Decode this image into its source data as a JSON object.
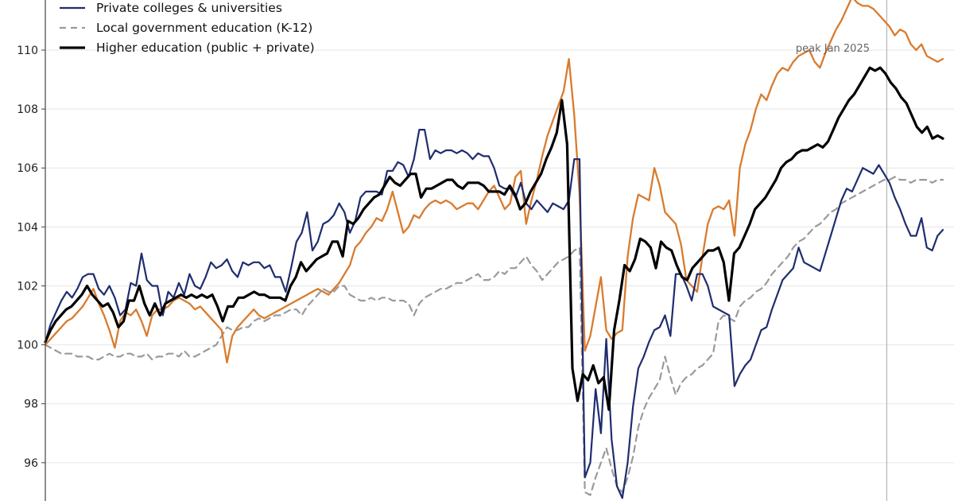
{
  "chart_data": {
    "type": "line",
    "x_start": "2015-01",
    "x_end": "2025-09",
    "ylim": [
      94.7,
      111.7
    ],
    "y_ticks": [
      96,
      98,
      100,
      102,
      104,
      106,
      108,
      110
    ],
    "grid": "horizontal",
    "legend_placement": "top-left",
    "annotation": {
      "text": "peak Jan 2025",
      "x": "2025-01"
    },
    "series": [
      {
        "name": "Private colleges & universities",
        "color": "#1f2d6e",
        "style": "solid",
        "values": [
          100.1,
          100.7,
          101.1,
          101.5,
          101.8,
          101.6,
          101.9,
          102.3,
          102.4,
          102.4,
          101.9,
          101.7,
          102.0,
          101.6,
          101.0,
          101.2,
          102.1,
          102.0,
          103.1,
          102.2,
          102.0,
          102.0,
          101.0,
          101.8,
          101.6,
          102.1,
          101.7,
          102.4,
          102.0,
          101.9,
          102.3,
          102.8,
          102.6,
          102.7,
          102.9,
          102.5,
          102.3,
          102.8,
          102.7,
          102.8,
          102.8,
          102.6,
          102.7,
          102.3,
          102.3,
          101.8,
          102.6,
          103.5,
          103.8,
          104.5,
          103.2,
          103.5,
          104.1,
          104.2,
          104.4,
          104.8,
          104.5,
          103.8,
          104.2,
          105.0,
          105.2,
          105.2,
          105.2,
          105.1,
          105.9,
          105.9,
          106.2,
          106.1,
          105.7,
          106.3,
          107.3,
          107.3,
          106.3,
          106.6,
          106.5,
          106.6,
          106.6,
          106.5,
          106.6,
          106.5,
          106.3,
          106.5,
          106.4,
          106.4,
          106.0,
          105.4,
          105.3,
          105.3,
          105.0,
          105.5,
          104.8,
          104.6,
          104.9,
          104.7,
          104.5,
          104.8,
          104.7,
          104.6,
          104.9,
          106.3,
          106.3,
          95.5,
          96.0,
          98.5,
          97.0,
          100.2,
          96.8,
          95.2,
          94.8,
          96.0,
          97.9,
          99.2,
          99.6,
          100.1,
          100.5,
          100.6,
          101.0,
          100.3,
          102.4,
          102.4,
          102.0,
          101.5,
          102.4,
          102.4,
          102.0,
          101.3,
          101.2,
          101.1,
          101.0,
          98.6,
          99.0,
          99.3,
          99.5,
          100.0,
          100.5,
          100.6,
          101.2,
          101.7,
          102.2,
          102.4,
          102.6,
          103.3,
          102.8,
          102.7,
          102.6,
          102.5,
          103.1,
          103.7,
          104.3,
          104.9,
          105.3,
          105.2,
          105.6,
          106.0,
          105.9,
          105.8,
          106.1,
          105.8,
          105.5,
          105.0,
          104.6,
          104.1,
          103.7,
          103.7,
          104.3,
          103.3,
          103.2,
          103.7,
          103.9
        ]
      },
      {
        "name": "Local government education (K-12)",
        "color": "#9a9a9a",
        "style": "dashed",
        "values": [
          100.0,
          99.9,
          99.8,
          99.7,
          99.7,
          99.7,
          99.6,
          99.6,
          99.6,
          99.5,
          99.5,
          99.6,
          99.7,
          99.6,
          99.6,
          99.7,
          99.7,
          99.6,
          99.6,
          99.7,
          99.5,
          99.6,
          99.6,
          99.7,
          99.7,
          99.6,
          99.8,
          99.6,
          99.6,
          99.7,
          99.8,
          99.9,
          100.0,
          100.3,
          100.6,
          100.5,
          100.5,
          100.6,
          100.6,
          100.8,
          100.9,
          100.8,
          100.9,
          101.0,
          101.0,
          101.1,
          101.2,
          101.2,
          101.0,
          101.3,
          101.5,
          101.7,
          101.9,
          101.8,
          101.8,
          102.0,
          102.0,
          101.7,
          101.6,
          101.5,
          101.5,
          101.6,
          101.5,
          101.6,
          101.6,
          101.5,
          101.5,
          101.5,
          101.4,
          101.0,
          101.4,
          101.6,
          101.7,
          101.8,
          101.9,
          101.9,
          102.0,
          102.1,
          102.1,
          102.2,
          102.3,
          102.4,
          102.2,
          102.2,
          102.3,
          102.5,
          102.4,
          102.6,
          102.6,
          102.8,
          103.0,
          102.7,
          102.5,
          102.2,
          102.4,
          102.6,
          102.8,
          102.9,
          103.0,
          103.2,
          103.3,
          95.0,
          94.9,
          95.5,
          96.0,
          96.5,
          95.8,
          95.2,
          95.0,
          95.5,
          96.2,
          97.2,
          97.8,
          98.2,
          98.5,
          98.8,
          99.6,
          98.9,
          98.3,
          98.7,
          98.9,
          99.0,
          99.2,
          99.3,
          99.5,
          99.7,
          100.8,
          101.0,
          100.9,
          100.8,
          101.3,
          101.5,
          101.6,
          101.8,
          101.9,
          102.1,
          102.4,
          102.6,
          102.8,
          103.0,
          103.3,
          103.5,
          103.6,
          103.8,
          104.0,
          104.1,
          104.3,
          104.5,
          104.6,
          104.8,
          104.9,
          105.0,
          105.1,
          105.2,
          105.3,
          105.4,
          105.5,
          105.6,
          105.6,
          105.7,
          105.6,
          105.6,
          105.5,
          105.6,
          105.6,
          105.6,
          105.5,
          105.6,
          105.6
        ]
      },
      {
        "name": "Higher education (public + private)",
        "color": "#000000",
        "style": "solid",
        "values": [
          100.1,
          100.5,
          100.8,
          101.0,
          101.2,
          101.3,
          101.5,
          101.7,
          102.0,
          101.7,
          101.5,
          101.3,
          101.4,
          101.1,
          100.6,
          100.8,
          101.5,
          101.5,
          102.0,
          101.4,
          101.0,
          101.4,
          101.0,
          101.4,
          101.5,
          101.6,
          101.7,
          101.6,
          101.7,
          101.6,
          101.7,
          101.6,
          101.7,
          101.3,
          100.8,
          101.3,
          101.3,
          101.6,
          101.6,
          101.7,
          101.8,
          101.7,
          101.7,
          101.6,
          101.6,
          101.6,
          101.5,
          102.0,
          102.3,
          102.8,
          102.5,
          102.7,
          102.9,
          103.0,
          103.1,
          103.5,
          103.5,
          103.0,
          104.2,
          104.1,
          104.3,
          104.6,
          104.8,
          105.0,
          105.1,
          105.4,
          105.7,
          105.5,
          105.4,
          105.6,
          105.8,
          105.8,
          105.0,
          105.3,
          105.3,
          105.4,
          105.5,
          105.6,
          105.6,
          105.4,
          105.3,
          105.5,
          105.5,
          105.5,
          105.4,
          105.2,
          105.2,
          105.2,
          105.1,
          105.4,
          105.1,
          104.6,
          104.8,
          105.2,
          105.5,
          105.8,
          106.3,
          106.7,
          107.2,
          108.3,
          106.8,
          99.2,
          98.1,
          99.0,
          98.8,
          99.3,
          98.7,
          98.9,
          97.8,
          100.5,
          101.5,
          102.7,
          102.5,
          102.9,
          103.6,
          103.5,
          103.3,
          102.6,
          103.5,
          103.3,
          103.2,
          102.7,
          102.3,
          102.2,
          102.6,
          102.8,
          103.0,
          103.2,
          103.2,
          103.3,
          102.8,
          101.5,
          103.1,
          103.3,
          103.7,
          104.1,
          104.6,
          104.8,
          105.0,
          105.3,
          105.6,
          106.0,
          106.2,
          106.3,
          106.5,
          106.6,
          106.6,
          106.7,
          106.8,
          106.7,
          106.9,
          107.3,
          107.7,
          108.0,
          108.3,
          108.5,
          108.8,
          109.1,
          109.4,
          109.3,
          109.4,
          109.2,
          108.9,
          108.7,
          108.4,
          108.2,
          107.8,
          107.4,
          107.2,
          107.4,
          107.0,
          107.1,
          107.0
        ]
      },
      {
        "color": "#d97b2e",
        "style": "solid",
        "values": [
          100.0,
          100.2,
          100.4,
          100.6,
          100.8,
          100.9,
          101.1,
          101.3,
          101.6,
          101.9,
          101.4,
          101.0,
          100.5,
          99.9,
          100.8,
          101.1,
          101.0,
          101.2,
          100.8,
          100.3,
          101.0,
          101.2,
          101.2,
          101.3,
          101.5,
          101.6,
          101.5,
          101.4,
          101.2,
          101.3,
          101.1,
          100.9,
          100.7,
          100.5,
          99.4,
          100.3,
          100.6,
          100.8,
          101.0,
          101.2,
          101.0,
          100.9,
          101.0,
          101.1,
          101.2,
          101.3,
          101.4,
          101.5,
          101.6,
          101.7,
          101.8,
          101.9,
          101.8,
          101.7,
          101.9,
          102.1,
          102.4,
          102.7,
          103.3,
          103.5,
          103.8,
          104.0,
          104.3,
          104.2,
          104.6,
          105.2,
          104.5,
          103.8,
          104.0,
          104.4,
          104.3,
          104.6,
          104.8,
          104.9,
          104.8,
          104.9,
          104.8,
          104.6,
          104.7,
          104.8,
          104.8,
          104.6,
          104.9,
          105.2,
          105.4,
          105.0,
          104.6,
          104.8,
          105.7,
          105.9,
          104.1,
          104.9,
          105.6,
          106.4,
          107.1,
          107.6,
          108.1,
          108.6,
          109.7,
          107.8,
          105.1,
          99.8,
          100.3,
          101.3,
          102.3,
          100.5,
          100.2,
          100.4,
          100.5,
          103.0,
          104.3,
          105.1,
          105.0,
          104.9,
          106.0,
          105.4,
          104.5,
          104.3,
          104.1,
          103.4,
          102.2,
          102.0,
          101.8,
          103.0,
          104.1,
          104.6,
          104.7,
          104.6,
          104.9,
          103.7,
          106.0,
          106.8,
          107.3,
          108.0,
          108.5,
          108.3,
          108.8,
          109.2,
          109.4,
          109.3,
          109.6,
          109.8,
          109.9,
          110.0,
          109.6,
          109.4,
          109.9,
          110.3,
          110.7,
          111.0,
          111.4,
          111.8,
          111.6,
          111.5,
          111.5,
          111.4,
          111.2,
          111.0,
          110.8,
          110.5,
          110.7,
          110.6,
          110.2,
          110.0,
          110.2,
          109.8,
          109.7,
          109.6,
          109.7
        ]
      }
    ]
  }
}
